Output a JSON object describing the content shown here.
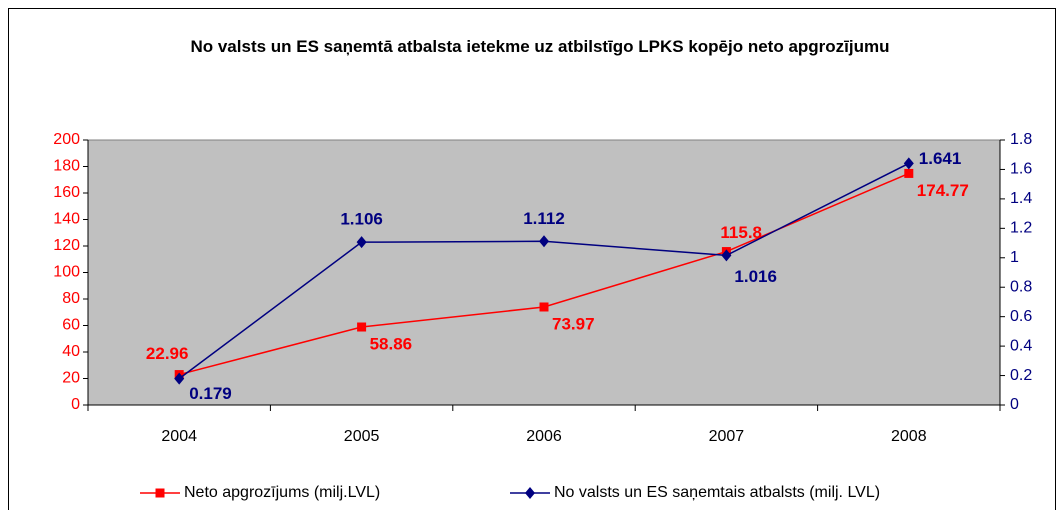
{
  "chart_data": {
    "type": "line",
    "title": "No valsts un ES saņemtā atbalsta ietekme uz atbilstīgo LPKS kopējo neto apgrozījumu",
    "categories": [
      "2004",
      "2005",
      "2006",
      "2007",
      "2008"
    ],
    "series": [
      {
        "name": "Neto apgrozījums (milj.LVL)",
        "color": "#ff0000",
        "axis": "y",
        "values": [
          22.96,
          58.86,
          73.97,
          115.8,
          174.77
        ]
      },
      {
        "name": "No valsts un ES saņemtais atbalsts (milj. LVL)",
        "color": "#000080",
        "axis": "y2",
        "values": [
          0.179,
          1.106,
          1.112,
          1.016,
          1.641
        ]
      }
    ],
    "ylim": [
      0,
      200
    ],
    "yticks": [
      0,
      20,
      40,
      60,
      80,
      100,
      120,
      140,
      160,
      180,
      200
    ],
    "y2lim": [
      0,
      1.8
    ],
    "y2ticks": [
      0,
      0.2,
      0.4,
      0.6,
      0.8,
      1,
      1.2,
      1.4,
      1.6,
      1.8
    ],
    "grid": false,
    "legend": "bottom",
    "plot_background": "#c0c0c0"
  }
}
